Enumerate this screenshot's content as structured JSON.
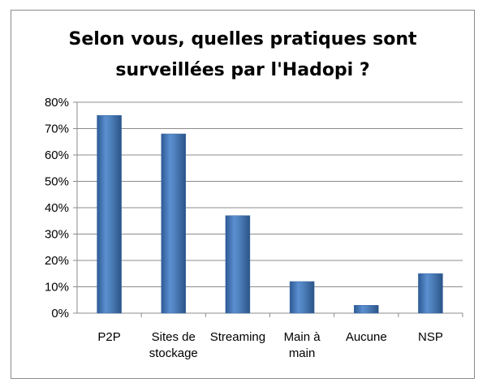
{
  "chart_data": {
    "type": "bar",
    "title_lines": [
      "Selon vous, quelles pratiques sont",
      "surveillées par l'Hadopi ?"
    ],
    "categories": [
      [
        "P2P"
      ],
      [
        "Sites de",
        "stockage"
      ],
      [
        "Streaming"
      ],
      [
        "Main à",
        "main"
      ],
      [
        "Aucune"
      ],
      [
        "NSP"
      ]
    ],
    "values": [
      75,
      68,
      37,
      12,
      3,
      15
    ],
    "ylim": [
      0,
      80
    ],
    "yticks": [
      0,
      10,
      20,
      30,
      40,
      50,
      60,
      70,
      80
    ],
    "ytick_labels": [
      "0%",
      "10%",
      "20%",
      "30%",
      "40%",
      "50%",
      "60%",
      "70%",
      "80%"
    ],
    "grid": true,
    "bar_color": "#4f81bd"
  }
}
